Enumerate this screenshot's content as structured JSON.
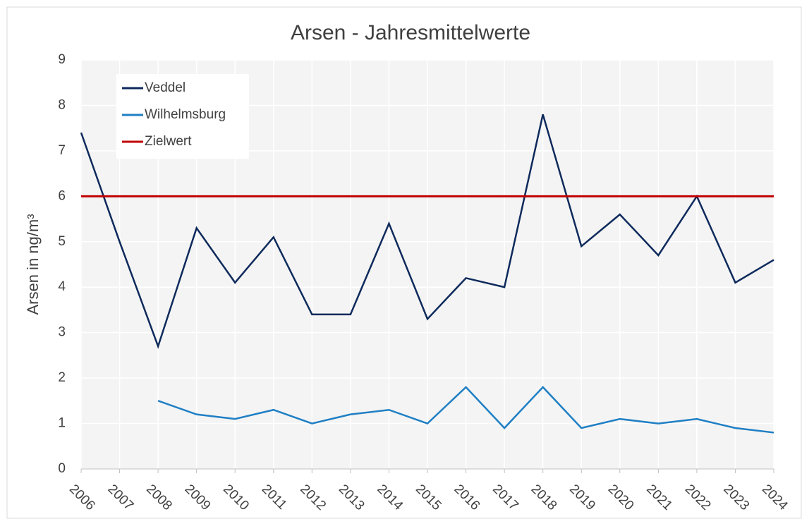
{
  "chart_data": {
    "type": "line",
    "title": "Arsen - Jahresmittelwerte",
    "y_label": "Arsen in ng/m³",
    "x": [
      2006,
      2007,
      2008,
      2009,
      2010,
      2011,
      2012,
      2013,
      2014,
      2015,
      2016,
      2017,
      2018,
      2019,
      2020,
      2021,
      2022,
      2023,
      2024
    ],
    "xlim": [
      2006,
      2024
    ],
    "xticks": [
      2006,
      2007,
      2008,
      2009,
      2010,
      2011,
      2012,
      2013,
      2014,
      2015,
      2016,
      2017,
      2018,
      2019,
      2020,
      2021,
      2022,
      2023,
      2024
    ],
    "ylim": [
      0,
      9
    ],
    "yticks": [
      0,
      1,
      2,
      3,
      4,
      5,
      6,
      7,
      8,
      9
    ],
    "grid": true,
    "legend": "upper left",
    "series": [
      {
        "name": "Veddel",
        "color": "#0e2a5c",
        "values": [
          7.4,
          5.0,
          2.7,
          5.3,
          4.1,
          5.1,
          3.4,
          3.4,
          5.4,
          3.3,
          4.2,
          4.0,
          7.8,
          4.9,
          5.6,
          4.7,
          6.0,
          4.1,
          4.6
        ]
      },
      {
        "name": "Wilhelmsburg",
        "color": "#1f7fc4",
        "values": [
          null,
          null,
          1.5,
          1.2,
          1.1,
          1.3,
          1.0,
          1.2,
          1.3,
          1.0,
          1.8,
          0.9,
          1.8,
          0.9,
          1.1,
          1.0,
          1.1,
          0.9,
          0.8
        ]
      },
      {
        "name": "Zielwert",
        "color": "#c00000",
        "values": [
          6,
          6,
          6,
          6,
          6,
          6,
          6,
          6,
          6,
          6,
          6,
          6,
          6,
          6,
          6,
          6,
          6,
          6,
          6
        ]
      }
    ]
  }
}
